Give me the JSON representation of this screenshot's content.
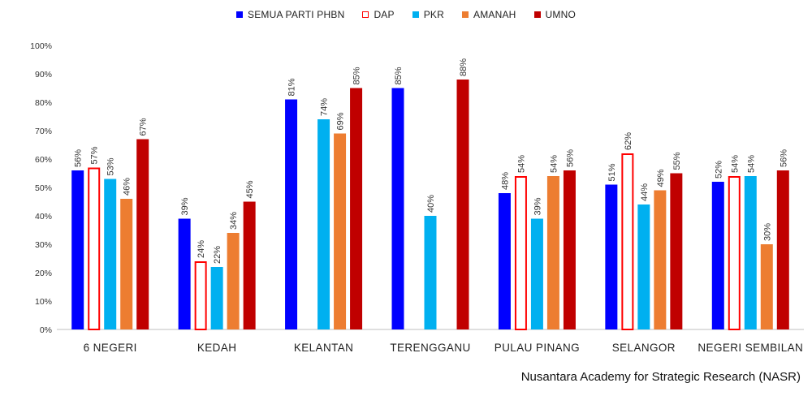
{
  "chart_data": {
    "type": "bar",
    "title": "",
    "xlabel": "",
    "ylabel": "",
    "ylim": [
      0,
      100
    ],
    "yticks": [
      0,
      10,
      20,
      30,
      40,
      50,
      60,
      70,
      80,
      90,
      100
    ],
    "tick_suffix": "%",
    "grid": false,
    "legend_position": "top-center",
    "categories": [
      "6 NEGERI",
      "KEDAH",
      "KELANTAN",
      "TERENGGANU",
      "PULAU PINANG",
      "SELANGOR",
      "NEGERI SEMBILAN"
    ],
    "series": [
      {
        "name": "SEMUA PARTI PHBN",
        "color": "#0000ff",
        "style": "solid",
        "values": [
          56,
          39,
          81,
          85,
          48,
          51,
          52
        ]
      },
      {
        "name": "DAP",
        "color": "#ff0000",
        "style": "outline",
        "values": [
          57,
          24,
          null,
          null,
          54,
          62,
          54
        ]
      },
      {
        "name": "PKR",
        "color": "#00b0f0",
        "style": "solid",
        "values": [
          53,
          22,
          74,
          40,
          39,
          44,
          54
        ]
      },
      {
        "name": "AMANAH",
        "color": "#ed7d31",
        "style": "solid",
        "values": [
          46,
          34,
          69,
          null,
          54,
          49,
          30
        ]
      },
      {
        "name": "UMNO",
        "color": "#c00000",
        "style": "solid",
        "values": [
          67,
          45,
          85,
          88,
          56,
          55,
          56
        ]
      }
    ]
  },
  "source": "Nusantara Academy for Strategic Research (NASR)"
}
